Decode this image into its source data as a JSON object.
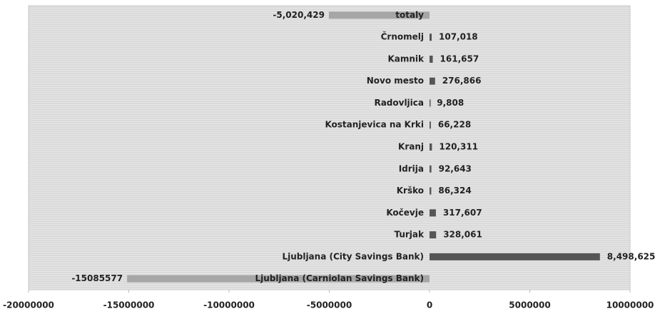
{
  "chart_data": {
    "type": "bar",
    "orientation": "horizontal",
    "categories": [
      "totaly",
      "Črnomelj",
      "Kamnik",
      "Novo mesto",
      "Radovljica",
      "Kostanjevica na Krki",
      "Kranj",
      "Idrija",
      "Krško",
      "Kočevje",
      "Turjak",
      "Ljubljana (City Savings Bank)",
      "Ljubljana (Carniolan Savings Bank)"
    ],
    "values": [
      -5020429,
      107018,
      161657,
      276866,
      9808,
      66228,
      120311,
      92643,
      86324,
      317607,
      328061,
      8498625,
      -15085577
    ],
    "value_labels": [
      "-5,020,429",
      "107,018",
      "161,657",
      "276,866",
      "9,808",
      "66,228",
      "120,311",
      "92,643",
      "86,324",
      "317,607",
      "328,061",
      "8,498,625",
      "-15085577"
    ],
    "color_positive": "#555555",
    "color_negative": "#a6a6a6",
    "xlim": [
      -20000000,
      10000000
    ],
    "xticks": [
      -20000000,
      -15000000,
      -10000000,
      -5000000,
      0,
      5000000,
      10000000
    ]
  }
}
